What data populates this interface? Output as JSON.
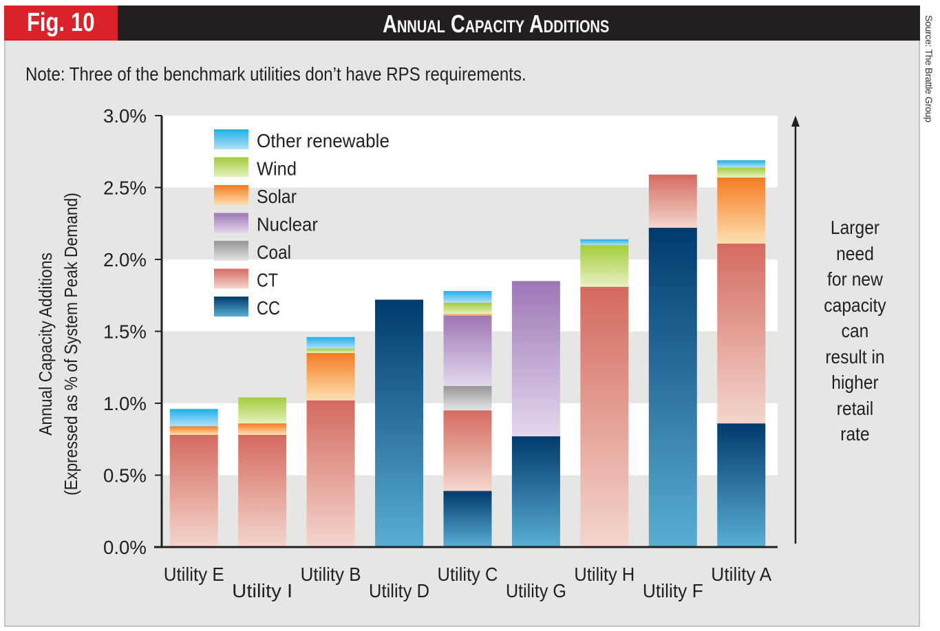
{
  "header": {
    "fig_label": "Fig. 10",
    "title": "Annual Capacity Additions",
    "source": "Source: The Brattle Group",
    "note": "Note: Three of the benchmark utilities don’t have RPS requirements."
  },
  "side_note": {
    "lines": [
      "Larger",
      "need",
      "for new",
      "capacity",
      "can",
      "result in",
      "higher",
      "retail",
      "rate"
    ]
  },
  "colors": {
    "fig_label_bg": "#d9222a",
    "header_bg": "#231f20",
    "panel_bg": "#e6e7e5",
    "band_white": "#ffffff"
  },
  "chart_data": {
    "type": "bar",
    "stacked": true,
    "title": "Annual Capacity Additions",
    "xlabel": "",
    "ylabel": "Annual Capacity Additions (Expressed as % of System Peak Demand)",
    "ylabel_lines": [
      "Annual Capacity Additions",
      "(Expressed as % of System Peak Demand)"
    ],
    "ylim": [
      0,
      3.0
    ],
    "yticks": [
      0.0,
      0.5,
      1.0,
      1.5,
      2.0,
      2.5,
      3.0
    ],
    "ytick_labels": [
      "0.0%",
      "0.5%",
      "1.0%",
      "1.5%",
      "2.0%",
      "2.5%",
      "3.0%"
    ],
    "grid": "alternating horizontal bands",
    "legend_position": "top-left",
    "categories": [
      "Utility E",
      "Utility I",
      "Utility B",
      "Utility D",
      "Utility C",
      "Utility G",
      "Utility H",
      "Utility F",
      "Utility A"
    ],
    "series": [
      {
        "name": "CC",
        "colors": [
          "#003a6c",
          "#5aaed3"
        ],
        "values": [
          0,
          0,
          0,
          1.72,
          0.39,
          0.77,
          0,
          2.22,
          0.86
        ]
      },
      {
        "name": "CT",
        "colors": [
          "#d46a5f",
          "#f4d6cd"
        ],
        "values": [
          0.78,
          0.78,
          1.02,
          0,
          0.56,
          0,
          1.81,
          0.37,
          1.25
        ]
      },
      {
        "name": "Coal",
        "colors": [
          "#959698",
          "#e4e5e7"
        ],
        "values": [
          0,
          0,
          0,
          0,
          0.17,
          0,
          0,
          0,
          0
        ]
      },
      {
        "name": "Nuclear",
        "colors": [
          "#9e76b5",
          "#e3d8ee"
        ],
        "values": [
          0,
          0,
          0,
          0,
          0.49,
          1.08,
          0,
          0,
          0
        ]
      },
      {
        "name": "Solar",
        "colors": [
          "#f47b20",
          "#fee0b2"
        ],
        "values": [
          0.06,
          0.08,
          0.33,
          0,
          0.01,
          0,
          0,
          0,
          0.46
        ]
      },
      {
        "name": "Wind",
        "colors": [
          "#a4cc3a",
          "#e6f2c2"
        ],
        "values": [
          0,
          0.18,
          0.03,
          0,
          0.08,
          0,
          0.29,
          0,
          0.07
        ]
      },
      {
        "name": "Other renewable",
        "colors": [
          "#1fb0e6",
          "#b2e0f9"
        ],
        "values": [
          0.12,
          0,
          0.08,
          0,
          0.08,
          0,
          0.04,
          0,
          0.05
        ]
      }
    ],
    "legend_order": [
      "Other renewable",
      "Wind",
      "Solar",
      "Nuclear",
      "Coal",
      "CT",
      "CC"
    ],
    "annotation": "Larger need for new capacity can result in higher retail rate"
  }
}
